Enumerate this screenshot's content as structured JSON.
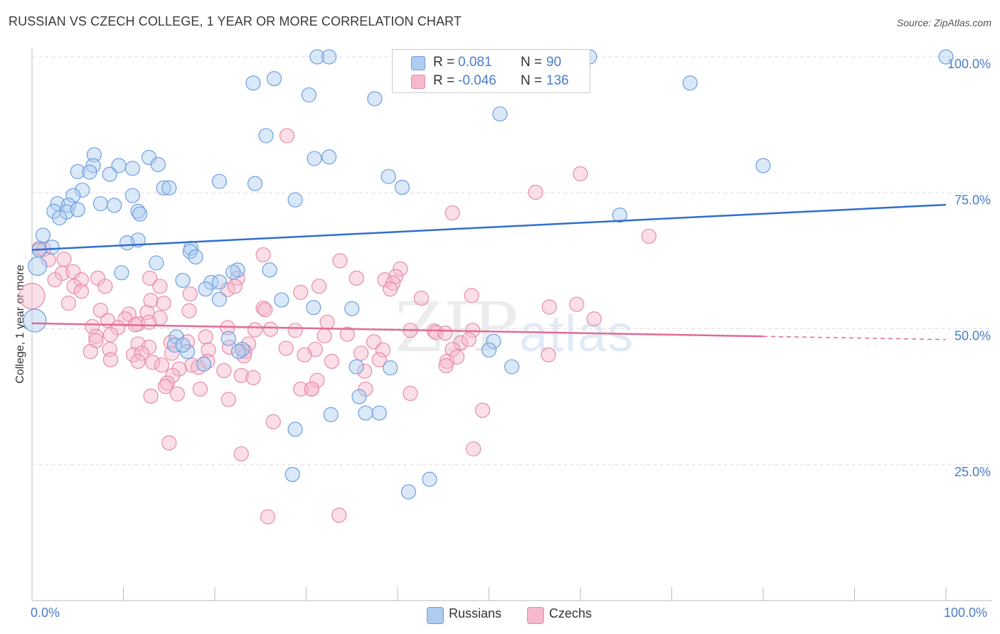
{
  "title": "RUSSIAN VS CZECH COLLEGE, 1 YEAR OR MORE CORRELATION CHART",
  "source": "Source: ZipAtlas.com",
  "watermark": {
    "zip": "ZIP",
    "atlas": "atlas"
  },
  "legend_top": {
    "rows": [
      {
        "r_label": "R =",
        "r_value": "0.081",
        "n_label": "N =",
        "n_value": "90",
        "color": "#aecbf0"
      },
      {
        "r_label": "R =",
        "r_value": "-0.046",
        "n_label": "N =",
        "n_value": "136",
        "color": "#f6b9cc"
      }
    ]
  },
  "legend_bottom": [
    {
      "label": "Russians",
      "color": "#aecbf0"
    },
    {
      "label": "Czechs",
      "color": "#f6b9cc"
    }
  ],
  "x_ticks": {
    "left": "0.0%",
    "right": "100.0%"
  },
  "chart_data": {
    "type": "scatter",
    "title": "RUSSIAN VS CZECH COLLEGE, 1 YEAR OR MORE CORRELATION CHART",
    "xlabel": "",
    "ylabel": "College, 1 year or more",
    "xlim": [
      0,
      100
    ],
    "ylim": [
      0,
      102
    ],
    "y_ticks": [
      "25.0%",
      "50.0%",
      "75.0%",
      "100.0%"
    ],
    "y_tick_values": [
      25,
      50,
      75,
      100
    ],
    "grid": true,
    "series": [
      {
        "name": "Russians",
        "color": "#6c9ee0",
        "fill": "#aecbf0",
        "trend": {
          "x": [
            0,
            100
          ],
          "y": [
            64.5,
            72.8
          ],
          "color": "#2f6fcc"
        },
        "points": [
          [
            31.2,
            100
          ],
          [
            32.5,
            100
          ],
          [
            46.5,
            100
          ],
          [
            59.5,
            100
          ],
          [
            61,
            100
          ],
          [
            100,
            100
          ],
          [
            24.2,
            95.2
          ],
          [
            26.5,
            96
          ],
          [
            72,
            95.2
          ],
          [
            30.3,
            93
          ],
          [
            37.5,
            92.3
          ],
          [
            51.2,
            89.5
          ],
          [
            25.6,
            85.5
          ],
          [
            6.8,
            82
          ],
          [
            12.8,
            81.5
          ],
          [
            30.9,
            81.3
          ],
          [
            32.5,
            81.6
          ],
          [
            6.7,
            80
          ],
          [
            13.8,
            80.2
          ],
          [
            9.5,
            80
          ],
          [
            11,
            79.5
          ],
          [
            5,
            78.9
          ],
          [
            6.3,
            78.8
          ],
          [
            8.5,
            78.4
          ],
          [
            39,
            78
          ],
          [
            20.5,
            77.1
          ],
          [
            24.4,
            76.7
          ],
          [
            80,
            80
          ],
          [
            40.5,
            76
          ],
          [
            14.4,
            75.9
          ],
          [
            15,
            75.9
          ],
          [
            5.5,
            75.5
          ],
          [
            4.5,
            74.5
          ],
          [
            11,
            74.5
          ],
          [
            2.8,
            73
          ],
          [
            4,
            72.7
          ],
          [
            7.5,
            73
          ],
          [
            9,
            72.7
          ],
          [
            2.4,
            71.6
          ],
          [
            3.8,
            71.5
          ],
          [
            5,
            71.9
          ],
          [
            11.6,
            71.6
          ],
          [
            11.8,
            71.1
          ],
          [
            28.8,
            73.7
          ],
          [
            64.3,
            70.9
          ],
          [
            3,
            70.4
          ],
          [
            1.2,
            67.2
          ],
          [
            11.6,
            66.3
          ],
          [
            10.4,
            65.8
          ],
          [
            2.2,
            65
          ],
          [
            17.4,
            64.8
          ],
          [
            0.8,
            64.5
          ],
          [
            17.3,
            64.2
          ],
          [
            17.9,
            63.2
          ],
          [
            13.6,
            62.1
          ],
          [
            0.6,
            61.5
          ],
          [
            26,
            60.8
          ],
          [
            9.8,
            60.3
          ],
          [
            22.5,
            60.8
          ],
          [
            22,
            60.4
          ],
          [
            16.5,
            58.9
          ],
          [
            19.6,
            58.5
          ],
          [
            20.5,
            58.6
          ],
          [
            19,
            57.3
          ],
          [
            20.5,
            55.4
          ],
          [
            27.3,
            55.3
          ],
          [
            30.8,
            53.9
          ],
          [
            35,
            53.7
          ],
          [
            0.3,
            51.5
          ],
          [
            15.8,
            48.5
          ],
          [
            15.6,
            47
          ],
          [
            17,
            45.8
          ],
          [
            16.5,
            47
          ],
          [
            21.5,
            48.2
          ],
          [
            23,
            46.2
          ],
          [
            22.6,
            45.8
          ],
          [
            50.5,
            47.7
          ],
          [
            50,
            46.1
          ],
          [
            18.8,
            43.5
          ],
          [
            35.5,
            43
          ],
          [
            52.5,
            43
          ],
          [
            39.2,
            42.8
          ],
          [
            35.8,
            37.5
          ],
          [
            36.5,
            34.5
          ],
          [
            38,
            34.5
          ],
          [
            32.7,
            34.2
          ],
          [
            28.8,
            31.5
          ],
          [
            28.5,
            23.2
          ],
          [
            41.2,
            20
          ],
          [
            43.5,
            22.3
          ]
        ]
      },
      {
        "name": "Czechs",
        "color": "#e88aa8",
        "fill": "#f6b9cc",
        "trend": {
          "x": [
            0,
            80
          ],
          "y": [
            51,
            48.6
          ],
          "color": "#e06b97",
          "dash_to": 100,
          "dash_y": 48
        },
        "points": [
          [
            0,
            56
          ],
          [
            27.9,
            85.5
          ],
          [
            60,
            78.5
          ],
          [
            55.1,
            75.1
          ],
          [
            46,
            71.3
          ],
          [
            67.5,
            67
          ],
          [
            0.8,
            64.8
          ],
          [
            1.3,
            64.6
          ],
          [
            3.5,
            62.8
          ],
          [
            1.8,
            62.7
          ],
          [
            25.3,
            63.6
          ],
          [
            33.7,
            62.5
          ],
          [
            40.3,
            61
          ],
          [
            39.8,
            59.6
          ],
          [
            3.3,
            60.2
          ],
          [
            2.5,
            59
          ],
          [
            4.5,
            60.5
          ],
          [
            5.4,
            59
          ],
          [
            7.2,
            59.3
          ],
          [
            12.9,
            59.3
          ],
          [
            22.5,
            59.3
          ],
          [
            35.5,
            59.3
          ],
          [
            38.6,
            59
          ],
          [
            39.5,
            58.4
          ],
          [
            4.6,
            57.8
          ],
          [
            8,
            57.8
          ],
          [
            14,
            57.8
          ],
          [
            21.4,
            57.2
          ],
          [
            22.2,
            57.8
          ],
          [
            31.4,
            57.8
          ],
          [
            39.2,
            57.3
          ],
          [
            5.4,
            56.9
          ],
          [
            17.3,
            56.4
          ],
          [
            29.4,
            56.7
          ],
          [
            42.6,
            55.6
          ],
          [
            48.1,
            56.1
          ],
          [
            13,
            55.2
          ],
          [
            4,
            54.7
          ],
          [
            14.4,
            54.7
          ],
          [
            17.2,
            53.3
          ],
          [
            25.3,
            53.8
          ],
          [
            7.5,
            53.4
          ],
          [
            10.6,
            52.7
          ],
          [
            12.6,
            53
          ],
          [
            25.5,
            53.5
          ],
          [
            56.6,
            54
          ],
          [
            59.6,
            54.5
          ],
          [
            61.5,
            51.8
          ],
          [
            8.3,
            51.5
          ],
          [
            10.2,
            51.8
          ],
          [
            14,
            52
          ],
          [
            32.3,
            51.2
          ],
          [
            6.6,
            50.4
          ],
          [
            11.6,
            50.9
          ],
          [
            12.8,
            51.2
          ],
          [
            9.4,
            50.2
          ],
          [
            11.3,
            50.7
          ],
          [
            21.4,
            50.2
          ],
          [
            24.4,
            49.8
          ],
          [
            26.1,
            49.9
          ],
          [
            28.8,
            49.7
          ],
          [
            41.4,
            49.7
          ],
          [
            44,
            49.6
          ],
          [
            48.2,
            49.7
          ],
          [
            7,
            48.6
          ],
          [
            8.6,
            48.9
          ],
          [
            19,
            48.5
          ],
          [
            34.5,
            49
          ],
          [
            32,
            48.7
          ],
          [
            44.2,
            49.3
          ],
          [
            45.2,
            49.2
          ],
          [
            7,
            47.8
          ],
          [
            11.6,
            47.2
          ],
          [
            15.2,
            47.5
          ],
          [
            17,
            47.6
          ],
          [
            23.7,
            47.2
          ],
          [
            37.4,
            47.6
          ],
          [
            46.9,
            47.4
          ],
          [
            47.8,
            48
          ],
          [
            8.5,
            46.2
          ],
          [
            12.8,
            46.6
          ],
          [
            19.3,
            46.1
          ],
          [
            21.6,
            46.6
          ],
          [
            27.8,
            46.4
          ],
          [
            31,
            46.2
          ],
          [
            38.4,
            46.1
          ],
          [
            46,
            46.2
          ],
          [
            6.4,
            45.8
          ],
          [
            11.1,
            45.2
          ],
          [
            12,
            45.5
          ],
          [
            15.3,
            45.5
          ],
          [
            23.3,
            45.8
          ],
          [
            29.8,
            45.2
          ],
          [
            36,
            45.5
          ],
          [
            8.6,
            44.3
          ],
          [
            11.6,
            44
          ],
          [
            13.2,
            43.8
          ],
          [
            14.2,
            43.3
          ],
          [
            17.5,
            43.3
          ],
          [
            19.2,
            44
          ],
          [
            23.2,
            45
          ],
          [
            38,
            44.3
          ],
          [
            56.5,
            45.2
          ],
          [
            45.4,
            44
          ],
          [
            45.3,
            43.2
          ],
          [
            46.5,
            44.8
          ],
          [
            32.8,
            44
          ],
          [
            16.1,
            42.6
          ],
          [
            21,
            42.3
          ],
          [
            36.4,
            42.2
          ],
          [
            18.2,
            42.9
          ],
          [
            31.2,
            40.5
          ],
          [
            15.4,
            41.4
          ],
          [
            14.8,
            40
          ],
          [
            14.6,
            39.4
          ],
          [
            22.9,
            41.4
          ],
          [
            24.2,
            41
          ],
          [
            36.5,
            38.9
          ],
          [
            30.6,
            38.9
          ],
          [
            29.4,
            38.9
          ],
          [
            18.4,
            38.9
          ],
          [
            15.9,
            38
          ],
          [
            13,
            37.6
          ],
          [
            21.5,
            37
          ],
          [
            41.4,
            38.1
          ],
          [
            49.3,
            35
          ],
          [
            26.4,
            32.9
          ],
          [
            15,
            29
          ],
          [
            48.3,
            27.9
          ],
          [
            22.9,
            27
          ],
          [
            33.6,
            15.7
          ],
          [
            25.8,
            15.4
          ],
          [
            30.6,
            38.9
          ]
        ]
      }
    ]
  }
}
